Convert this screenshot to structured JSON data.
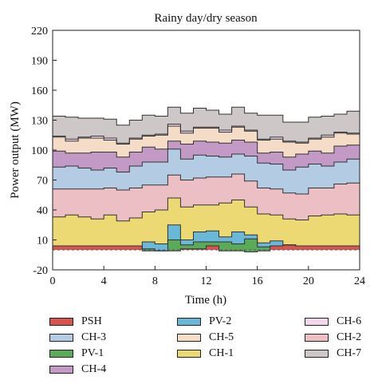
{
  "chart_data": {
    "type": "area",
    "stacked": true,
    "step": true,
    "title": "Rainy day/dry season",
    "xlabel": "Time (h)",
    "ylabel": "Power output (MW)",
    "xlim": [
      0,
      24
    ],
    "ylim": [
      -20,
      220
    ],
    "xticks": [
      0,
      4,
      8,
      12,
      16,
      20,
      24
    ],
    "yticks": [
      -20,
      10,
      40,
      70,
      100,
      130,
      160,
      190,
      220
    ],
    "grid": false,
    "legend_position": "bottom",
    "x": [
      0,
      1,
      2,
      3,
      4,
      5,
      6,
      7,
      8,
      9,
      10,
      11,
      12,
      13,
      14,
      15,
      16,
      17,
      18,
      19,
      20,
      21,
      22,
      23
    ],
    "series": [
      {
        "name": "PSH",
        "color": "#d9534f",
        "values": [
          4,
          4,
          4,
          4,
          4,
          4,
          4,
          -1,
          -1,
          -1,
          1,
          1,
          4,
          -1,
          -1,
          -2,
          -1,
          4,
          5,
          4,
          4,
          4,
          4,
          4
        ]
      },
      {
        "name": "PV-1",
        "color": "#5aaa5a",
        "values": [
          0,
          0,
          0,
          0,
          0,
          0,
          0,
          2,
          0,
          11,
          4,
          7,
          4,
          9,
          7,
          13,
          4,
          0,
          0,
          0,
          0,
          0,
          0,
          0
        ]
      },
      {
        "name": "PV-2",
        "color": "#6ab8d8",
        "values": [
          0,
          0,
          0,
          0,
          0,
          0,
          0,
          7,
          7,
          15,
          5,
          10,
          11,
          5,
          12,
          4,
          4,
          5,
          0,
          0,
          0,
          0,
          0,
          0
        ]
      },
      {
        "name": "CH-1",
        "color": "#ecd974",
        "values": [
          29,
          31,
          29,
          27,
          31,
          25,
          28,
          30,
          34,
          27,
          33,
          27,
          26,
          34,
          32,
          28,
          29,
          26,
          26,
          26,
          30,
          31,
          32,
          31
        ]
      },
      {
        "name": "CH-2",
        "color": "#ecbfc4",
        "values": [
          28,
          26,
          28,
          30,
          27,
          31,
          30,
          27,
          25,
          23,
          27,
          27,
          28,
          26,
          26,
          26,
          26,
          26,
          26,
          26,
          28,
          27,
          30,
          32
        ]
      },
      {
        "name": "CH-3",
        "color": "#b3cce3",
        "values": [
          22,
          23,
          21,
          19,
          20,
          18,
          22,
          23,
          23,
          26,
          21,
          23,
          21,
          20,
          20,
          25,
          25,
          25,
          23,
          27,
          24,
          22,
          22,
          24
        ]
      },
      {
        "name": "CH-4",
        "color": "#c39ac6",
        "values": [
          16,
          13,
          15,
          18,
          16,
          15,
          14,
          15,
          13,
          8,
          15,
          14,
          14,
          14,
          14,
          14,
          10,
          12,
          13,
          13,
          13,
          13,
          16,
          14
        ]
      },
      {
        "name": "CH-5",
        "color": "#f5dcc7",
        "values": [
          14,
          12,
          15,
          14,
          12,
          13,
          13,
          11,
          14,
          15,
          11,
          13,
          14,
          11,
          13,
          11,
          13,
          13,
          15,
          11,
          12,
          16,
          13,
          11
        ]
      },
      {
        "name": "CH-6",
        "color": "#f2d6ec",
        "values": [
          1,
          2,
          1,
          2,
          2,
          1,
          1,
          1,
          1,
          2,
          2,
          1,
          1,
          2,
          1,
          1,
          1,
          2,
          1,
          1,
          1,
          2,
          1,
          1
        ]
      },
      {
        "name": "CH-7",
        "color": "#cdc7c7",
        "values": [
          20,
          22,
          19,
          18,
          19,
          18,
          18,
          20,
          18,
          17,
          18,
          19,
          17,
          16,
          19,
          17,
          24,
          22,
          19,
          20,
          21,
          19,
          18,
          22
        ]
      }
    ],
    "legend": [
      {
        "name": "PSH",
        "color": "#d9534f"
      },
      {
        "name": "CH-3",
        "color": "#b3cce3"
      },
      {
        "name": "PV-1",
        "color": "#5aaa5a"
      },
      {
        "name": "CH-4",
        "color": "#c39ac6"
      },
      {
        "name": "PV-2",
        "color": "#6ab8d8"
      },
      {
        "name": "CH-5",
        "color": "#f5dcc7"
      },
      {
        "name": "CH-1",
        "color": "#ecd974"
      },
      {
        "name": "CH-6",
        "color": "#f2d6ec"
      },
      {
        "name": "CH-2",
        "color": "#ecbfc4"
      },
      {
        "name": "CH-7",
        "color": "#cdc7c7"
      }
    ]
  }
}
